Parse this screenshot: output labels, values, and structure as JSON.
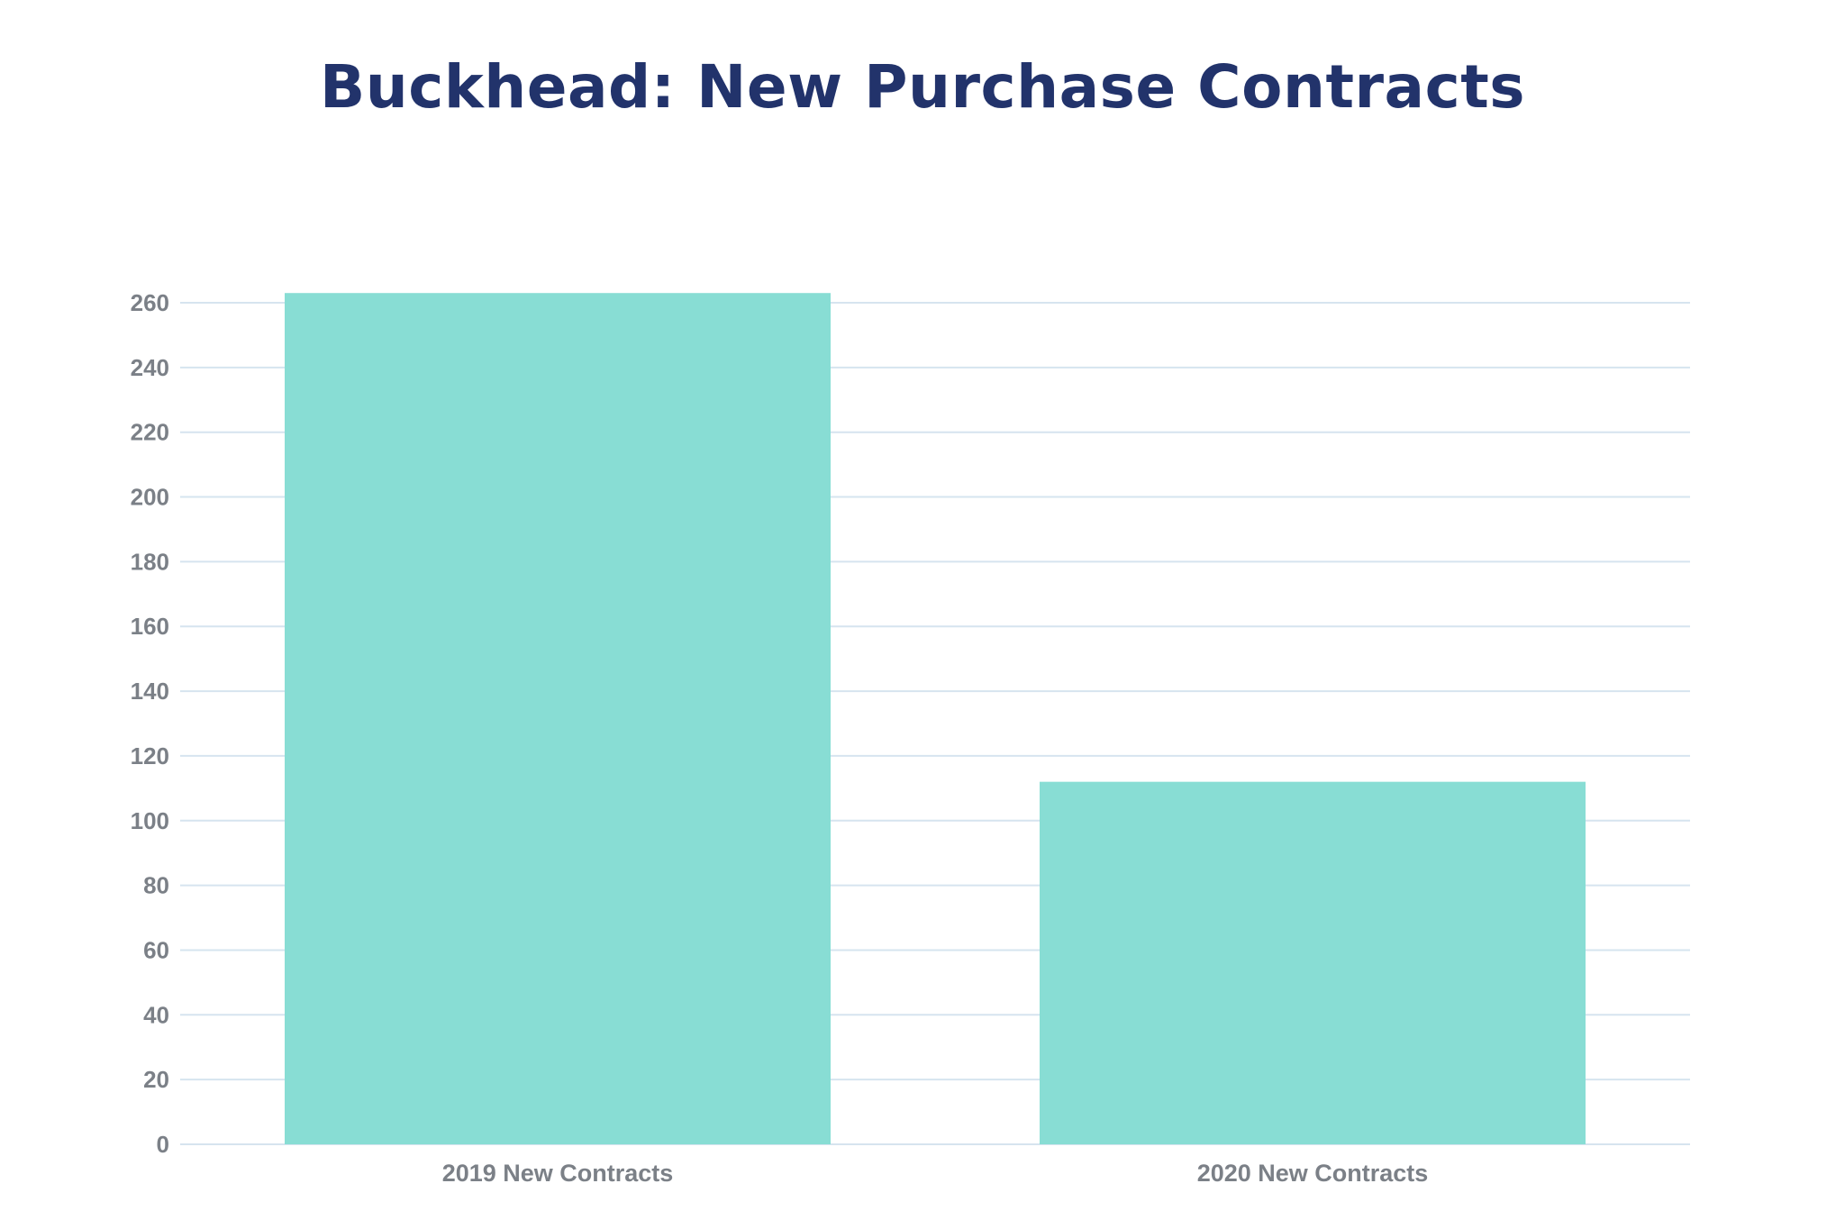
{
  "chart_data": {
    "type": "bar",
    "title": "Buckhead: New Purchase Contracts",
    "categories": [
      "2019 New Contracts",
      "2020 New Contracts"
    ],
    "values": [
      263,
      112
    ],
    "xlabel": "",
    "ylabel": "",
    "ylim": [
      0,
      260
    ],
    "yticks": [
      "0",
      "20",
      "40",
      "60",
      "80",
      "100",
      "120",
      "140",
      "160",
      "180",
      "200",
      "220",
      "240",
      "260"
    ],
    "grid": true,
    "legend": "none"
  },
  "colors": {
    "title": "#22336b",
    "bar": "#88ddd4",
    "gridline": "#d6e4ef",
    "tick_text": "#7b8087"
  }
}
